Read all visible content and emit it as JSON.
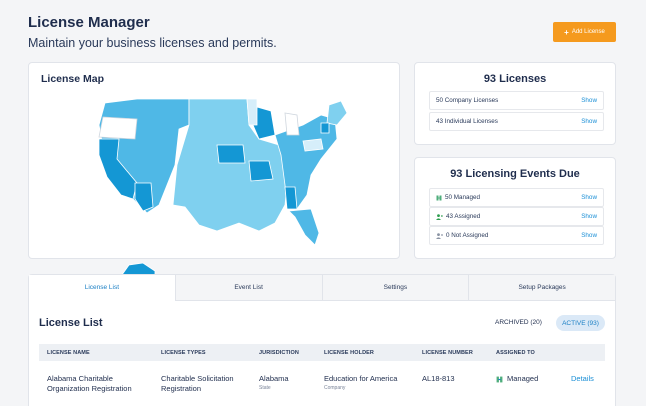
{
  "header": {
    "title": "License Manager",
    "subtitle": "Maintain your business licenses and permits.",
    "add_button": "Add License"
  },
  "license_map": {
    "title": "License Map"
  },
  "licenses": {
    "title": "93 Licenses",
    "rows": [
      {
        "label": "50 Company Licenses",
        "action": "Show"
      },
      {
        "label": "43 Individual Licenses",
        "action": "Show"
      }
    ]
  },
  "events": {
    "title": "93 Licensing Events Due",
    "rows": [
      {
        "icon": "building-icon",
        "label": "50 Managed",
        "action": "Show"
      },
      {
        "icon": "user-assigned-icon",
        "label": "43 Assigned",
        "action": "Show"
      },
      {
        "icon": "user-unassigned-icon",
        "label": "0 Not Assigned",
        "action": "Show"
      }
    ]
  },
  "tabs": [
    "License List",
    "Event List",
    "Settings",
    "Setup Packages"
  ],
  "license_list": {
    "title": "License List",
    "archived": "ARCHIVED (20)",
    "active": "ACTIVE (93)",
    "columns": [
      "LICENSE NAME",
      "LICENSE TYPES",
      "JURISDICTION",
      "LICENSE HOLDER",
      "LICENSE NUMBER",
      "ASSIGNED TO"
    ],
    "rows": [
      {
        "name_line1": "Alabama Charitable",
        "name_line2": "Organization Registration",
        "type_line1": "Charitable Solicitation",
        "type_line2": "Registration",
        "jurisdiction": "Alabama",
        "jurisdiction_sub": "State",
        "holder": "Education for America",
        "holder_sub": "Company",
        "number": "AL18-813",
        "assigned": "Managed",
        "action": "Details"
      }
    ]
  },
  "colors": {
    "accent": "#f59a1e",
    "link": "#1a8fd6",
    "map_light": "#7fd0ef",
    "map_mid": "#4fb8e6",
    "map_dark": "#1497d4"
  }
}
